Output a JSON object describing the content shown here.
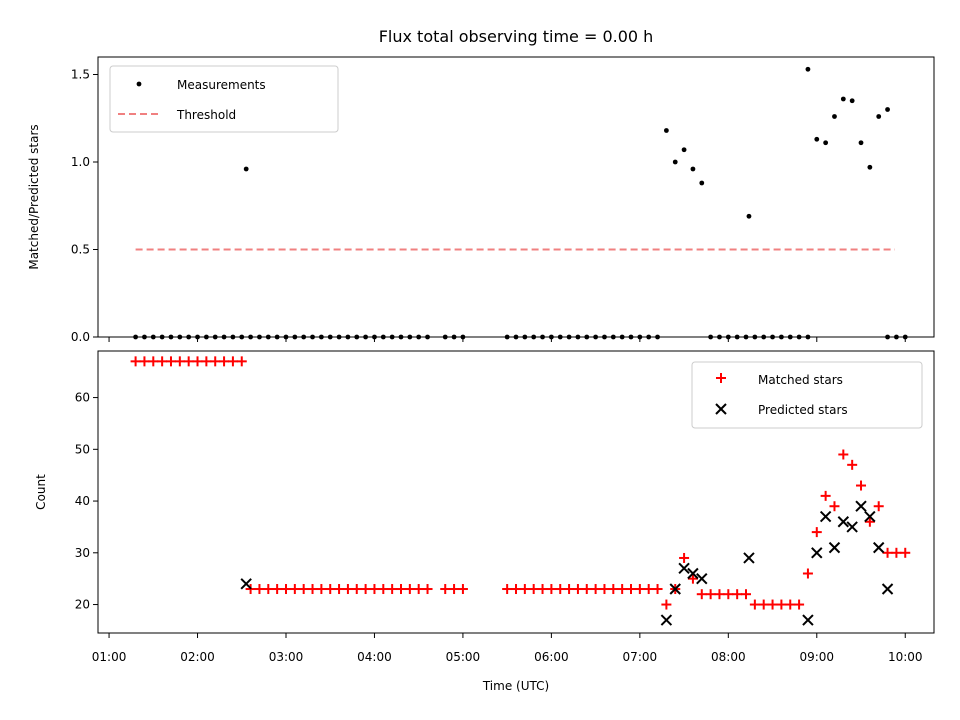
{
  "chart_data": [
    {
      "type": "scatter",
      "title": "Flux total observing time = 0.00 h",
      "xlabel": "",
      "ylabel": "Matched/Predicted stars",
      "xlim": [
        "01:00",
        "10:00"
      ],
      "ylim": [
        0,
        1.6
      ],
      "yticks": [
        "0.0",
        "0.5",
        "1.0",
        "1.5"
      ],
      "legend_position": "upper-left",
      "threshold": {
        "name": "Threshold",
        "value": 0.5,
        "x_range": [
          "01:18",
          "09:53"
        ],
        "color": "#f08080",
        "style": "dashed"
      },
      "series": [
        {
          "name": "Measurements",
          "color": "#000000",
          "marker": "dot",
          "points": [
            [
              "01:18",
              0
            ],
            [
              "01:24",
              0
            ],
            [
              "01:30",
              0
            ],
            [
              "01:36",
              0
            ],
            [
              "01:42",
              0
            ],
            [
              "01:48",
              0
            ],
            [
              "01:54",
              0
            ],
            [
              "02:00",
              0
            ],
            [
              "02:06",
              0
            ],
            [
              "02:12",
              0
            ],
            [
              "02:18",
              0
            ],
            [
              "02:24",
              0
            ],
            [
              "02:30",
              0
            ],
            [
              "02:33",
              0.96
            ],
            [
              "02:36",
              0
            ],
            [
              "02:42",
              0
            ],
            [
              "02:48",
              0
            ],
            [
              "02:54",
              0
            ],
            [
              "03:00",
              0
            ],
            [
              "03:06",
              0
            ],
            [
              "03:12",
              0
            ],
            [
              "03:18",
              0
            ],
            [
              "03:24",
              0
            ],
            [
              "03:30",
              0
            ],
            [
              "03:36",
              0
            ],
            [
              "03:42",
              0
            ],
            [
              "03:48",
              0
            ],
            [
              "03:54",
              0
            ],
            [
              "04:00",
              0
            ],
            [
              "04:06",
              0
            ],
            [
              "04:12",
              0
            ],
            [
              "04:18",
              0
            ],
            [
              "04:24",
              0
            ],
            [
              "04:30",
              0
            ],
            [
              "04:36",
              0
            ],
            [
              "04:48",
              0
            ],
            [
              "04:54",
              0
            ],
            [
              "05:00",
              0
            ],
            [
              "05:30",
              0
            ],
            [
              "05:36",
              0
            ],
            [
              "05:42",
              0
            ],
            [
              "05:48",
              0
            ],
            [
              "05:54",
              0
            ],
            [
              "06:00",
              0
            ],
            [
              "06:06",
              0
            ],
            [
              "06:12",
              0
            ],
            [
              "06:18",
              0
            ],
            [
              "06:24",
              0
            ],
            [
              "06:30",
              0
            ],
            [
              "06:36",
              0
            ],
            [
              "06:42",
              0
            ],
            [
              "06:48",
              0
            ],
            [
              "06:54",
              0
            ],
            [
              "07:00",
              0
            ],
            [
              "07:06",
              0
            ],
            [
              "07:12",
              0
            ],
            [
              "07:18",
              1.18
            ],
            [
              "07:24",
              1.0
            ],
            [
              "07:30",
              1.07
            ],
            [
              "07:36",
              0.96
            ],
            [
              "07:42",
              0.88
            ],
            [
              "07:48",
              0
            ],
            [
              "07:54",
              0
            ],
            [
              "08:00",
              0
            ],
            [
              "08:06",
              0
            ],
            [
              "08:12",
              0
            ],
            [
              "08:14",
              0.69
            ],
            [
              "08:18",
              0
            ],
            [
              "08:24",
              0
            ],
            [
              "08:30",
              0
            ],
            [
              "08:36",
              0
            ],
            [
              "08:42",
              0
            ],
            [
              "08:48",
              0
            ],
            [
              "08:54",
              0
            ],
            [
              "08:54",
              1.53
            ],
            [
              "09:00",
              1.13
            ],
            [
              "09:06",
              1.11
            ],
            [
              "09:12",
              1.26
            ],
            [
              "09:18",
              1.36
            ],
            [
              "09:24",
              1.35
            ],
            [
              "09:30",
              1.11
            ],
            [
              "09:36",
              0.97
            ],
            [
              "09:42",
              1.26
            ],
            [
              "09:48",
              1.3
            ],
            [
              "09:48",
              0
            ],
            [
              "09:54",
              0
            ],
            [
              "10:00",
              0
            ]
          ]
        }
      ]
    },
    {
      "type": "scatter",
      "title": "",
      "xlabel": "Time (UTC)",
      "ylabel": "Count",
      "xlim": [
        "01:00",
        "10:00"
      ],
      "ylim": [
        14.5,
        69
      ],
      "yticks": [
        "20",
        "30",
        "40",
        "50",
        "60"
      ],
      "xticks": [
        "01:00",
        "02:00",
        "03:00",
        "04:00",
        "05:00",
        "06:00",
        "07:00",
        "08:00",
        "09:00",
        "10:00"
      ],
      "legend_position": "upper-right",
      "series": [
        {
          "name": "Matched stars",
          "color": "#ff0000",
          "marker": "plus",
          "points": [
            [
              "01:18",
              67
            ],
            [
              "01:24",
              67
            ],
            [
              "01:30",
              67
            ],
            [
              "01:36",
              67
            ],
            [
              "01:42",
              67
            ],
            [
              "01:48",
              67
            ],
            [
              "01:54",
              67
            ],
            [
              "02:00",
              67
            ],
            [
              "02:06",
              67
            ],
            [
              "02:12",
              67
            ],
            [
              "02:18",
              67
            ],
            [
              "02:24",
              67
            ],
            [
              "02:30",
              67
            ],
            [
              "02:36",
              23
            ],
            [
              "02:42",
              23
            ],
            [
              "02:48",
              23
            ],
            [
              "02:54",
              23
            ],
            [
              "03:00",
              23
            ],
            [
              "03:06",
              23
            ],
            [
              "03:12",
              23
            ],
            [
              "03:18",
              23
            ],
            [
              "03:24",
              23
            ],
            [
              "03:30",
              23
            ],
            [
              "03:36",
              23
            ],
            [
              "03:42",
              23
            ],
            [
              "03:48",
              23
            ],
            [
              "03:54",
              23
            ],
            [
              "04:00",
              23
            ],
            [
              "04:06",
              23
            ],
            [
              "04:12",
              23
            ],
            [
              "04:18",
              23
            ],
            [
              "04:24",
              23
            ],
            [
              "04:30",
              23
            ],
            [
              "04:36",
              23
            ],
            [
              "04:48",
              23
            ],
            [
              "04:54",
              23
            ],
            [
              "05:00",
              23
            ],
            [
              "05:30",
              23
            ],
            [
              "05:36",
              23
            ],
            [
              "05:42",
              23
            ],
            [
              "05:48",
              23
            ],
            [
              "05:54",
              23
            ],
            [
              "06:00",
              23
            ],
            [
              "06:06",
              23
            ],
            [
              "06:12",
              23
            ],
            [
              "06:18",
              23
            ],
            [
              "06:24",
              23
            ],
            [
              "06:30",
              23
            ],
            [
              "06:36",
              23
            ],
            [
              "06:42",
              23
            ],
            [
              "06:48",
              23
            ],
            [
              "06:54",
              23
            ],
            [
              "07:00",
              23
            ],
            [
              "07:06",
              23
            ],
            [
              "07:12",
              23
            ],
            [
              "07:18",
              20
            ],
            [
              "07:24",
              23
            ],
            [
              "07:30",
              29
            ],
            [
              "07:36",
              25
            ],
            [
              "07:42",
              22
            ],
            [
              "07:48",
              22
            ],
            [
              "07:54",
              22
            ],
            [
              "08:00",
              22
            ],
            [
              "08:06",
              22
            ],
            [
              "08:12",
              22
            ],
            [
              "08:18",
              20
            ],
            [
              "08:24",
              20
            ],
            [
              "08:30",
              20
            ],
            [
              "08:36",
              20
            ],
            [
              "08:42",
              20
            ],
            [
              "08:48",
              20
            ],
            [
              "08:54",
              26
            ],
            [
              "09:00",
              34
            ],
            [
              "09:06",
              41
            ],
            [
              "09:12",
              39
            ],
            [
              "09:18",
              49
            ],
            [
              "09:24",
              47
            ],
            [
              "09:30",
              43
            ],
            [
              "09:36",
              36
            ],
            [
              "09:42",
              39
            ],
            [
              "09:48",
              30
            ],
            [
              "09:54",
              30
            ],
            [
              "10:00",
              30
            ]
          ]
        },
        {
          "name": "Predicted stars",
          "color": "#000000",
          "marker": "x",
          "points": [
            [
              "02:33",
              24
            ],
            [
              "07:18",
              17
            ],
            [
              "07:24",
              23
            ],
            [
              "07:30",
              27
            ],
            [
              "07:36",
              26
            ],
            [
              "07:42",
              25
            ],
            [
              "08:14",
              29
            ],
            [
              "08:54",
              17
            ],
            [
              "09:00",
              30
            ],
            [
              "09:06",
              37
            ],
            [
              "09:12",
              31
            ],
            [
              "09:18",
              36
            ],
            [
              "09:24",
              35
            ],
            [
              "09:30",
              39
            ],
            [
              "09:36",
              37
            ],
            [
              "09:42",
              31
            ],
            [
              "09:48",
              23
            ]
          ]
        }
      ]
    }
  ]
}
